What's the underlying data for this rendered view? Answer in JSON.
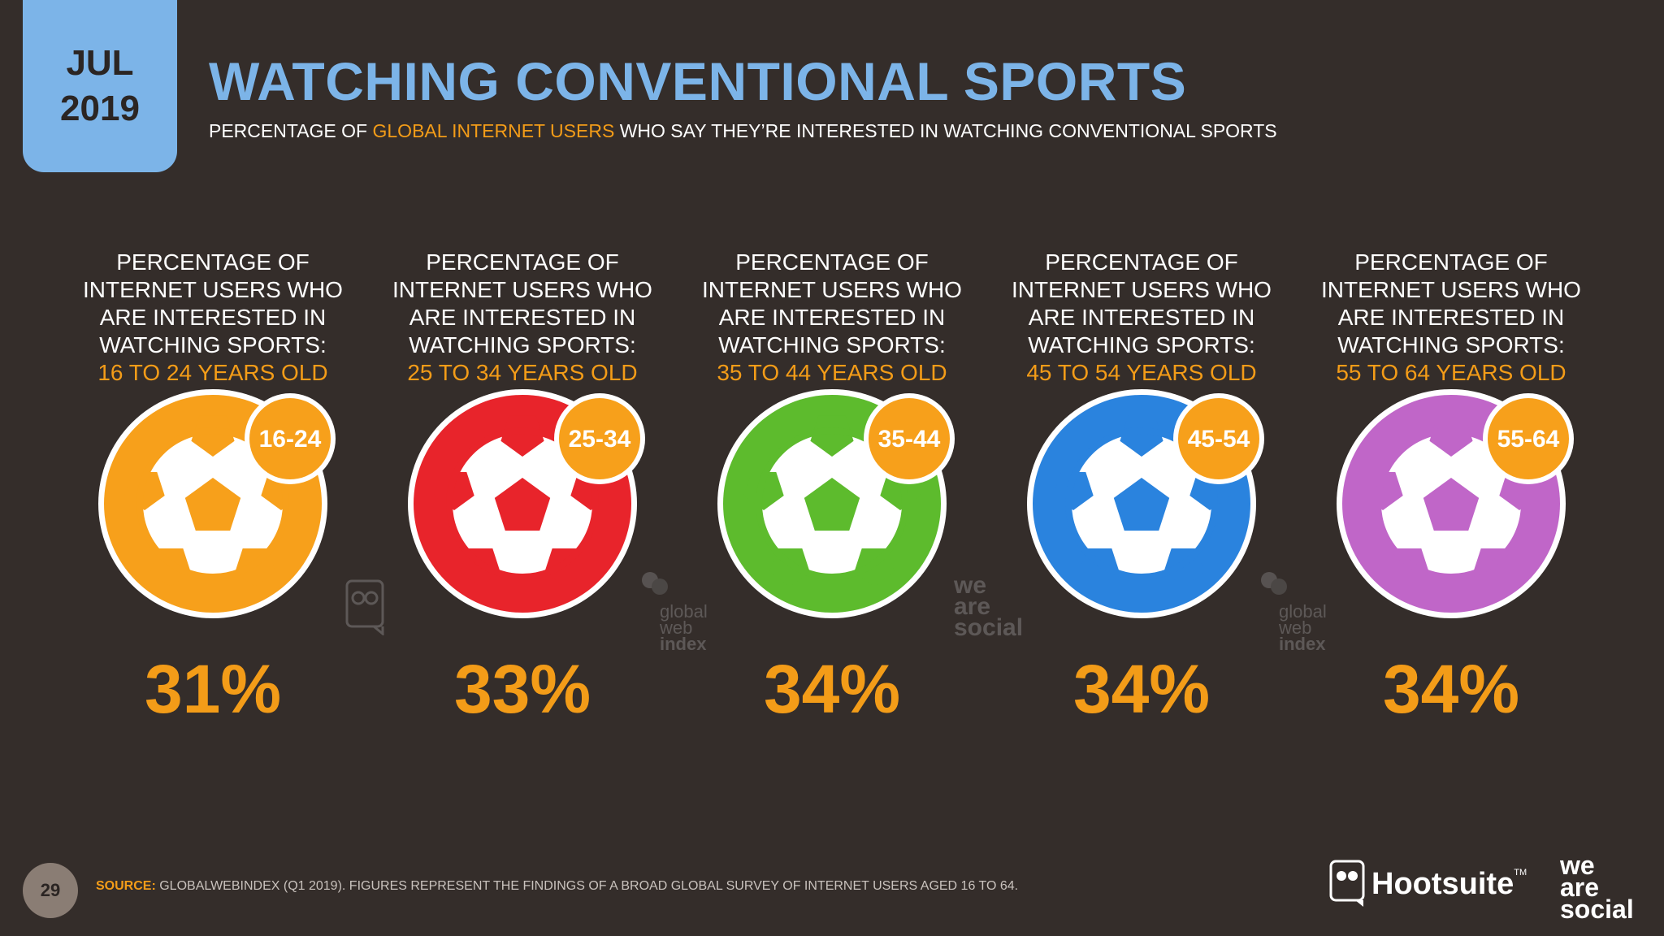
{
  "header": {
    "month": "JUL",
    "year": "2019",
    "title": "WATCHING CONVENTIONAL SPORTS",
    "subtitle_pre": "PERCENTAGE OF ",
    "subtitle_highlight": "GLOBAL INTERNET USERS",
    "subtitle_post": " WHO SAY THEY’RE INTERESTED IN WATCHING CONVENTIONAL SPORTS"
  },
  "chart_data": {
    "type": "table",
    "categories": [
      "16-24",
      "25-34",
      "35-44",
      "45-54",
      "55-64"
    ],
    "values": [
      31,
      33,
      34,
      34,
      34
    ],
    "columns": [
      {
        "desc": "PERCENTAGE OF INTERNET USERS WHO ARE INTERESTED IN WATCHING SPORTS:",
        "age": "16 TO 24 YEARS OLD",
        "badge": "16-24",
        "value_label": "31%",
        "color": "#f7a01b"
      },
      {
        "desc": "PERCENTAGE OF INTERNET USERS WHO ARE INTERESTED IN WATCHING SPORTS:",
        "age": "25 TO 34 YEARS OLD",
        "badge": "25-34",
        "value_label": "33%",
        "color": "#e8242b"
      },
      {
        "desc": "PERCENTAGE OF INTERNET USERS WHO ARE INTERESTED IN WATCHING SPORTS:",
        "age": "35 TO 44 YEARS OLD",
        "badge": "35-44",
        "value_label": "34%",
        "color": "#5dbb2d"
      },
      {
        "desc": "PERCENTAGE OF INTERNET USERS WHO ARE INTERESTED IN WATCHING SPORTS:",
        "age": "45 TO 54 YEARS OLD",
        "badge": "45-54",
        "value_label": "34%",
        "color": "#2a83de"
      },
      {
        "desc": "PERCENTAGE OF INTERNET USERS WHO ARE INTERESTED IN WATCHING SPORTS:",
        "age": "55 TO 64 YEARS OLD",
        "badge": "55-64",
        "value_label": "34%",
        "color": "#c066c8"
      }
    ]
  },
  "colors": {
    "background": "#342d2a",
    "accent_blue": "#7cb4e8",
    "accent_orange": "#f39c18",
    "badge_orange": "#f7a01b"
  },
  "footer": {
    "page_number": "29",
    "source_label": "SOURCE:",
    "source_text": " GLOBALWEBINDEX (Q1 2019). FIGURES REPRESENT THE FINDINGS OF A BROAD GLOBAL SURVEY OF INTERNET USERS AGED 16 TO 64.",
    "hootsuite": "Hootsuite",
    "hootsuite_tm": "TM",
    "we_are_social": [
      "we",
      "are",
      "social"
    ]
  },
  "watermarks": {
    "gwi": [
      "global",
      "web",
      "index"
    ],
    "was": [
      "we",
      "are",
      "social"
    ]
  }
}
